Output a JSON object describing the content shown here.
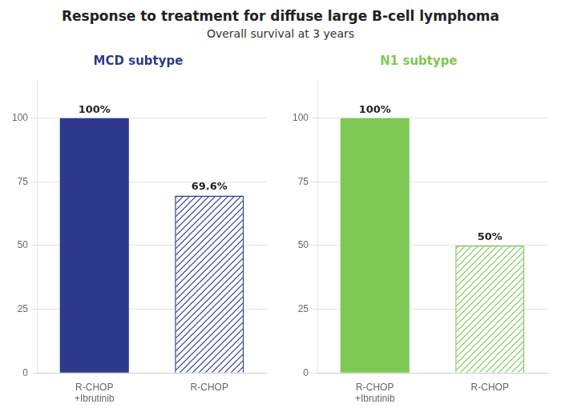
{
  "title": "Response to treatment for diffuse large B-cell lymphoma",
  "subtitle": "Overall survival at 3 years",
  "chart_data": [
    {
      "type": "bar",
      "title": "MCD subtype",
      "categories": [
        "R-CHOP\n+Ibrutinib",
        "R-CHOP"
      ],
      "values": [
        100,
        69.6
      ],
      "value_labels": [
        "100%",
        "69.6%"
      ],
      "color": "#2e3a8c",
      "ylim": [
        0,
        115
      ],
      "yticks": [
        0,
        25,
        50,
        75,
        100
      ],
      "grid": true,
      "data_labels": true
    },
    {
      "type": "bar",
      "title": "N1 subtype",
      "categories": [
        "R-CHOP\n+Ibrutinib",
        "R-CHOP"
      ],
      "values": [
        100,
        50
      ],
      "value_labels": [
        "100%",
        "50%"
      ],
      "color": "#7ec855",
      "ylim": [
        0,
        115
      ],
      "yticks": [
        0,
        25,
        50,
        75,
        100
      ],
      "grid": true,
      "data_labels": true
    }
  ]
}
